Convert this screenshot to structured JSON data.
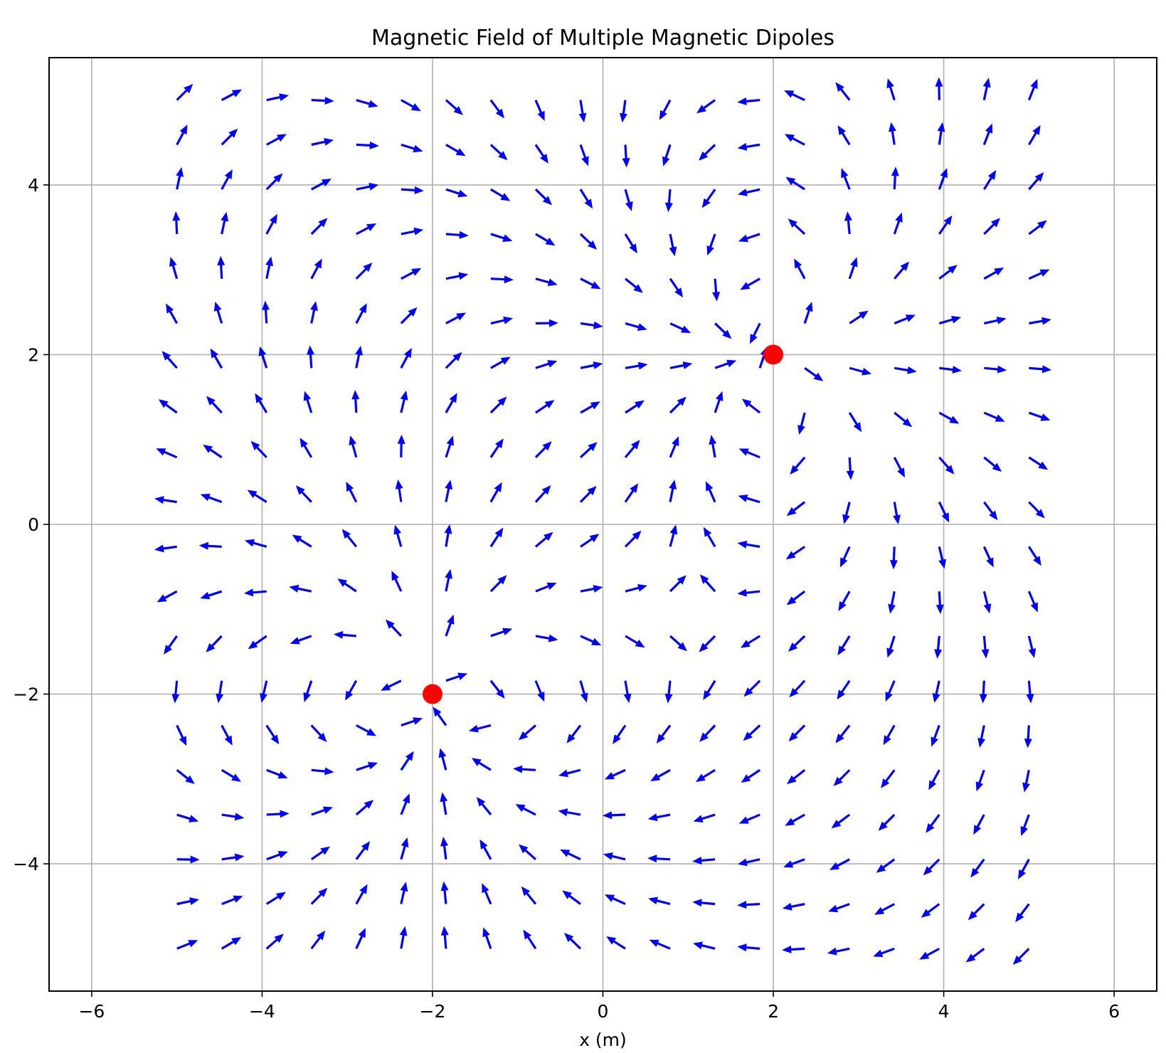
{
  "chart_data": {
    "type": "quiver",
    "title": "Magnetic Field of Multiple Magnetic Dipoles",
    "xlabel": "x (m)",
    "ylabel": "",
    "xlim": [
      -6.5,
      6.5
    ],
    "ylim": [
      -5.5,
      5.5
    ],
    "xticks": [
      -6,
      -4,
      -2,
      0,
      2,
      4,
      6
    ],
    "yticks": [
      -4,
      -2,
      0,
      2,
      4
    ],
    "xtick_labels": [
      "−6",
      "−4",
      "−2",
      "0",
      "2",
      "4",
      "6"
    ],
    "ytick_labels": [
      "−4",
      "−2",
      "0",
      "2",
      "4"
    ],
    "grid": true,
    "arrow_color": "#0000ff",
    "dipole_color": "#ff0000",
    "field_grid": {
      "x_min": -5,
      "x_max": 5,
      "y_min": -5,
      "y_max": 5,
      "n": 20
    },
    "dipoles": [
      {
        "x": 2,
        "y": 2,
        "mx": 1,
        "my": 0
      },
      {
        "x": -2,
        "y": -2,
        "mx": 0,
        "my": 1
      }
    ]
  }
}
